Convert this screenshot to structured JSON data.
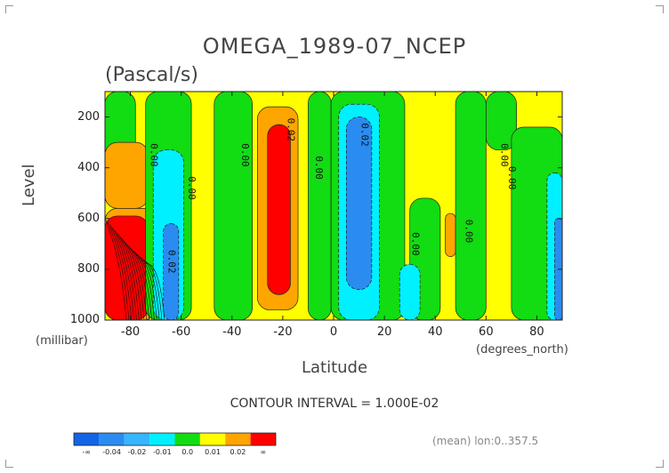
{
  "chart_data": {
    "type": "heatmap",
    "title": "OMEGA_1989-07_NCEP",
    "subtitle": "(Pascal/s)",
    "xlabel": "Latitude",
    "ylabel": "Level",
    "x_unit": "(degrees_north)",
    "y_unit": "(millibar)",
    "xlim": [
      -90,
      90
    ],
    "ylim": [
      1000,
      100
    ],
    "x_ticks": [
      "-80",
      "-60",
      "-40",
      "-20",
      "0",
      "20",
      "40",
      "60",
      "80"
    ],
    "x_tick_values": [
      -80,
      -60,
      -40,
      -20,
      0,
      20,
      40,
      60,
      80
    ],
    "y_ticks": [
      "200",
      "400",
      "600",
      "800",
      "1000"
    ],
    "y_tick_values": [
      200,
      400,
      600,
      800,
      1000
    ],
    "contour_interval_text": "CONTOUR INTERVAL = 1.000E-02",
    "contour_labels": [
      {
        "text": "0.00",
        "x": -72,
        "y": 350
      },
      {
        "text": "0.02",
        "x": -65,
        "y": 770
      },
      {
        "text": "0.00",
        "x": -57,
        "y": 480
      },
      {
        "text": "0.00",
        "x": -36,
        "y": 350
      },
      {
        "text": "0.02",
        "x": -18,
        "y": 250
      },
      {
        "text": "0.00",
        "x": -7,
        "y": 400
      },
      {
        "text": "0.02",
        "x": 11,
        "y": 270
      },
      {
        "text": "0.00",
        "x": 31,
        "y": 700
      },
      {
        "text": "0.00",
        "x": 52,
        "y": 650
      },
      {
        "text": "0.00",
        "x": 66,
        "y": 350
      },
      {
        "text": "0.00",
        "x": 69,
        "y": 440
      }
    ],
    "bands": [
      {
        "name": "-∞",
        "color": "#1464e6"
      },
      {
        "name": "-0.04",
        "color": "#2a8cf0"
      },
      {
        "name": "-0.02",
        "color": "#36b6ff"
      },
      {
        "name": "-0.01",
        "color": "#00f0ff"
      },
      {
        "name": "0.0",
        "color": "#12dc12"
      },
      {
        "name": "0.01",
        "color": "#ffff00"
      },
      {
        "name": "0.02",
        "color": "#ffa500"
      },
      {
        "name": "∞",
        "color": "#ff0000"
      }
    ],
    "colorbar_labels": [
      "-∞",
      "-0.04",
      "-0.02",
      "-0.01",
      "0.0",
      "0.01",
      "0.02",
      "∞"
    ],
    "regions": [
      {
        "category": "yellow",
        "lat0": -90,
        "lat1": 90,
        "p0": 100,
        "p1": 1000
      },
      {
        "category": "green",
        "lat0": -90,
        "lat1": -78,
        "p0": 100,
        "p1": 500
      },
      {
        "category": "orange",
        "lat0": -90,
        "lat1": -73,
        "p0": 300,
        "p1": 560
      },
      {
        "category": "orange",
        "lat0": -90,
        "lat1": -70,
        "p0": 560,
        "p1": 1000
      },
      {
        "category": "red",
        "lat0": -90,
        "lat1": -73,
        "p0": 590,
        "p1": 1000
      },
      {
        "category": "green",
        "lat0": -74,
        "lat1": -56,
        "p0": 100,
        "p1": 1000
      },
      {
        "category": "cyan",
        "lat0": -71,
        "lat1": -59,
        "p0": 330,
        "p1": 1000
      },
      {
        "category": "blue",
        "lat0": -67,
        "lat1": -61,
        "p0": 620,
        "p1": 1000
      },
      {
        "category": "green",
        "lat0": -47,
        "lat1": -32,
        "p0": 100,
        "p1": 1000
      },
      {
        "category": "green",
        "lat0": -10,
        "lat1": -1,
        "p0": 100,
        "p1": 1000
      },
      {
        "category": "orange",
        "lat0": -30,
        "lat1": -14,
        "p0": 160,
        "p1": 960
      },
      {
        "category": "red",
        "lat0": -26,
        "lat1": -17,
        "p0": 230,
        "p1": 900
      },
      {
        "category": "green",
        "lat0": -1,
        "lat1": 28,
        "p0": 100,
        "p1": 1000
      },
      {
        "category": "cyan",
        "lat0": 2,
        "lat1": 18,
        "p0": 150,
        "p1": 1000
      },
      {
        "category": "blue",
        "lat0": 5,
        "lat1": 15,
        "p0": 200,
        "p1": 880
      },
      {
        "category": "green",
        "lat0": 30,
        "lat1": 42,
        "p0": 520,
        "p1": 1000
      },
      {
        "category": "cyan",
        "lat0": 26,
        "lat1": 34,
        "p0": 780,
        "p1": 1000
      },
      {
        "category": "orange",
        "lat0": 44,
        "lat1": 48,
        "p0": 580,
        "p1": 750
      },
      {
        "category": "green",
        "lat0": 48,
        "lat1": 60,
        "p0": 100,
        "p1": 1000
      },
      {
        "category": "green",
        "lat0": 60,
        "lat1": 72,
        "p0": 100,
        "p1": 330
      },
      {
        "category": "green",
        "lat0": 70,
        "lat1": 90,
        "p0": 240,
        "p1": 1000
      },
      {
        "category": "cyan",
        "lat0": 84,
        "lat1": 90,
        "p0": 420,
        "p1": 1000
      },
      {
        "category": "blue",
        "lat0": 87,
        "lat1": 90,
        "p0": 600,
        "p1": 1000
      }
    ],
    "grid": false,
    "colorbar_position": "bottom-left"
  },
  "meta_text": "(mean) lon:0..357.5"
}
